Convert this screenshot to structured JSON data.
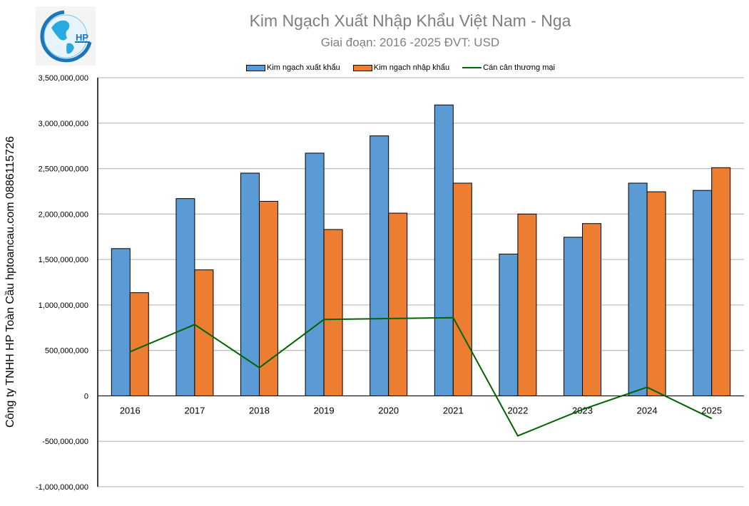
{
  "header": {
    "title": "Kim Ngạch Xuất Nhập Khẩu Việt Nam - Nga",
    "subtitle": "Giai đoạn: 2016 -2025  ĐVT: USD",
    "logo_text": "HP"
  },
  "side_label": "Công ty TNHH HP Toàn Cầu hptoancau.com 0886115726",
  "legend": [
    {
      "label": "Kim ngạch xuất khẩu",
      "color": "#5b9bd5",
      "type": "bar"
    },
    {
      "label": "Kim ngạch nhập khẩu",
      "color": "#ed7d31",
      "type": "bar"
    },
    {
      "label": "Cán cân thương mại",
      "color": "#006400",
      "type": "line"
    }
  ],
  "chart_data": {
    "type": "bar",
    "title": "Kim Ngạch Xuất Nhập Khẩu Việt Nam - Nga",
    "subtitle": "Giai đoạn: 2016 -2025  ĐVT: USD",
    "xlabel": "",
    "ylabel": "",
    "ylim": [
      -1000000000,
      3500000000
    ],
    "ytick_step": 500000000,
    "yticks": [
      "3,500,000,000",
      "3,000,000,000",
      "2,500,000,000",
      "2,000,000,000",
      "1,500,000,000",
      "1,000,000,000",
      "500,000,000",
      "0",
      "-500,000,000",
      "-1,000,000,000"
    ],
    "grid": true,
    "legend_position": "top",
    "categories": [
      "2016",
      "2017",
      "2018",
      "2019",
      "2020",
      "2021",
      "2022",
      "2023",
      "2024",
      "2025"
    ],
    "series": [
      {
        "name": "Kim ngạch xuất khẩu",
        "type": "bar",
        "color": "#5b9bd5",
        "values": [
          1620000000,
          2170000000,
          2450000000,
          2670000000,
          2860000000,
          3200000000,
          1560000000,
          1745000000,
          2340000000,
          2260000000
        ]
      },
      {
        "name": "Kim ngạch nhập khẩu",
        "type": "bar",
        "color": "#ed7d31",
        "values": [
          1135000000,
          1386000000,
          2140000000,
          1830000000,
          2010000000,
          2340000000,
          2000000000,
          1895000000,
          2245000000,
          2510000000
        ]
      },
      {
        "name": "Cán cân thương mại",
        "type": "line",
        "color": "#006400",
        "values": [
          485000000,
          784000000,
          310000000,
          840000000,
          850000000,
          860000000,
          -440000000,
          -150000000,
          95000000,
          -250000000
        ]
      }
    ]
  }
}
